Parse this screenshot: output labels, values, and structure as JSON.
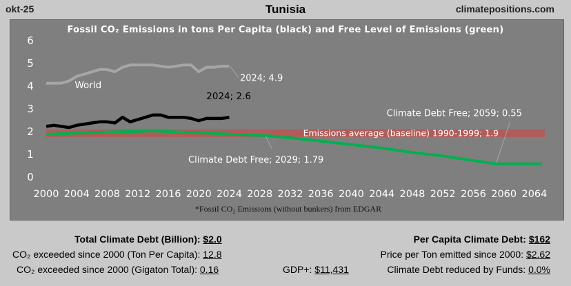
{
  "header": {
    "date": "okt-25",
    "country": "Tunisia",
    "site": "climatepositions.com"
  },
  "chart_data": {
    "type": "line",
    "title": "Fossil CO₂ Emissions in tons Per Capita (black) and Free Level of Emissions (green)",
    "footnote": "*Fossil CO₂ Emissions (without bunkers) from EDGAR",
    "xlabel": "",
    "ylabel": "",
    "xlim": [
      2000,
      2065
    ],
    "ylim": [
      0,
      6
    ],
    "x_ticks": [
      "2000",
      "2004",
      "2008",
      "2012",
      "2016",
      "2020",
      "2024",
      "2028",
      "2032",
      "2036",
      "2040",
      "2044",
      "2048",
      "2052",
      "2056",
      "2060",
      "2064"
    ],
    "y_ticks": [
      "0",
      "1",
      "2",
      "3",
      "4",
      "5",
      "6"
    ],
    "grid": false,
    "series": [
      {
        "name": "World",
        "color": "#a6a6a6",
        "x": [
          2000,
          2001,
          2002,
          2003,
          2004,
          2005,
          2006,
          2007,
          2008,
          2009,
          2010,
          2011,
          2012,
          2013,
          2014,
          2015,
          2016,
          2017,
          2018,
          2019,
          2020,
          2021,
          2022,
          2023,
          2024
        ],
        "y": [
          4.1,
          4.1,
          4.1,
          4.2,
          4.4,
          4.5,
          4.6,
          4.7,
          4.7,
          4.6,
          4.8,
          4.9,
          4.9,
          4.9,
          4.9,
          4.85,
          4.8,
          4.85,
          4.9,
          4.9,
          4.6,
          4.8,
          4.8,
          4.85,
          4.85
        ]
      },
      {
        "name": "Tunisia",
        "color": "#000000",
        "x": [
          2000,
          2001,
          2002,
          2003,
          2004,
          2005,
          2006,
          2007,
          2008,
          2009,
          2010,
          2011,
          2012,
          2013,
          2014,
          2015,
          2016,
          2017,
          2018,
          2019,
          2020,
          2021,
          2022,
          2023,
          2024
        ],
        "y": [
          2.2,
          2.25,
          2.2,
          2.15,
          2.25,
          2.3,
          2.35,
          2.4,
          2.4,
          2.35,
          2.6,
          2.4,
          2.5,
          2.6,
          2.7,
          2.7,
          2.6,
          2.6,
          2.6,
          2.55,
          2.45,
          2.55,
          2.55,
          2.55,
          2.6
        ]
      },
      {
        "name": "Free Level of Emissions",
        "color": "#00b050",
        "x": [
          2000,
          2004,
          2008,
          2012,
          2014,
          2016,
          2020,
          2024,
          2028,
          2029,
          2032,
          2036,
          2040,
          2044,
          2048,
          2052,
          2056,
          2059,
          2060,
          2065
        ],
        "y": [
          1.85,
          1.9,
          1.95,
          1.98,
          2.0,
          1.97,
          1.92,
          1.86,
          1.8,
          1.79,
          1.7,
          1.55,
          1.4,
          1.25,
          1.05,
          0.9,
          0.7,
          0.55,
          0.55,
          0.55
        ]
      }
    ],
    "baseline": {
      "label": "Emissions average (baseline) 1990-1999; 1.9",
      "value": 1.9,
      "color": "#c0504d"
    },
    "annotations": {
      "world_label": "World",
      "world_2024": "2024; 4.9",
      "tunisia_2024": "2024; 2.6",
      "free_2029": "Climate Debt Free; 2029; 1.79",
      "free_2059": "Climate Debt Free; 2059; 0.55"
    }
  },
  "footer": {
    "total_climate_debt_label": "Total Climate Debt (Billion):",
    "total_climate_debt_value": "$2.0",
    "co2_exceeded_per_capita_label": "CO₂ exceeded since 2000 (Ton Per Capita):",
    "co2_exceeded_per_capita_value": "12.8",
    "co2_exceeded_gigaton_label": "CO₂ exceeded since 2000 (Gigaton Total):",
    "co2_exceeded_gigaton_value": "0.16",
    "gdp_label": "GDP+:",
    "gdp_value": "$11,431",
    "per_capita_debt_label": "Per Capita Climate Debt:",
    "per_capita_debt_value": "$162",
    "price_per_ton_label": "Price per Ton emitted since 2000:",
    "price_per_ton_value": "$2.62",
    "debt_reduced_label": "Climate Debt reduced by Funds:",
    "debt_reduced_value": "0.0%"
  }
}
